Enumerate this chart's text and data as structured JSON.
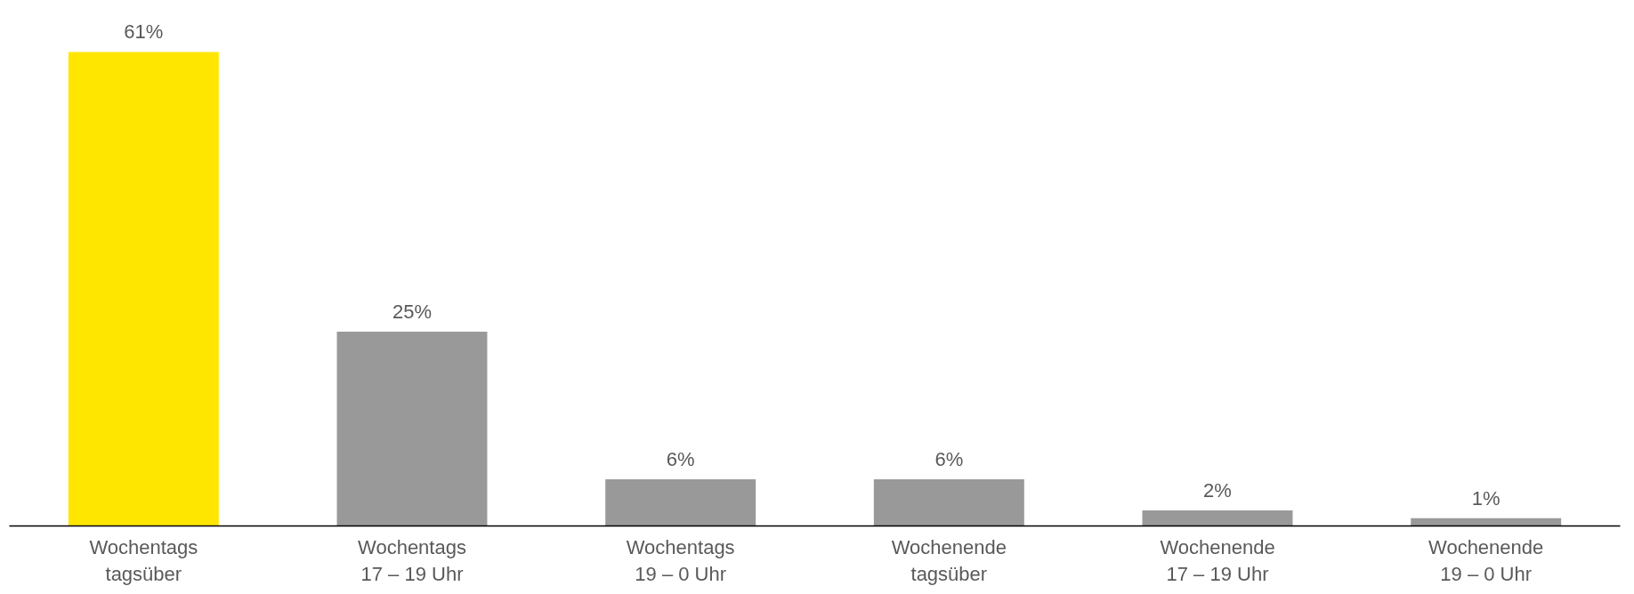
{
  "chart_data": {
    "type": "bar",
    "categories": [
      "Wochentags\ntagsüber",
      "Wochentags\n17 – 19 Uhr",
      "Wochentags\n19 – 0 Uhr",
      "Wochenende\ntagsüber",
      "Wochenende\n17 – 19 Uhr",
      "Wochenende\n19 – 0 Uhr"
    ],
    "values": [
      61,
      25,
      6,
      6,
      2,
      1
    ],
    "colors": [
      "#ffe600",
      "#999999",
      "#999999",
      "#999999",
      "#999999",
      "#999999"
    ],
    "value_labels": [
      "61%",
      "25%",
      "6%",
      "6%",
      "2%",
      "1%"
    ]
  }
}
